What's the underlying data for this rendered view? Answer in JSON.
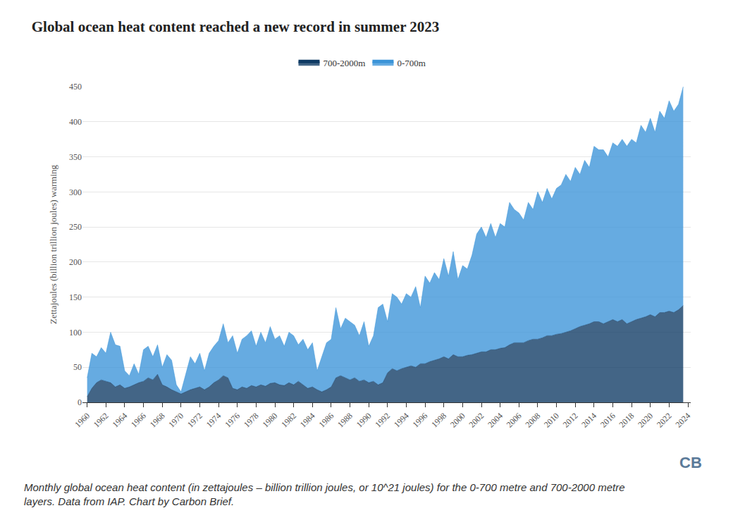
{
  "chart_data": {
    "type": "area",
    "title": "Global ocean heat content reached a new record in summer 2023",
    "y_label": "Zettajoules (billion trillion joules) warming",
    "caption": [
      "Monthly global ocean heat content (in zettajoules – billion trillion joules, or 10^21 joules) for the 0-700 metre and 700-2000 metre",
      "layers. Data from IAP. Chart by Carbon Brief."
    ],
    "logo": "CB",
    "stacked": true,
    "grid": true,
    "legend": "top",
    "x": [
      1960,
      1960.5,
      1961,
      1961.5,
      1962,
      1962.5,
      1963,
      1963.5,
      1964,
      1964.5,
      1965,
      1965.5,
      1966,
      1966.5,
      1967,
      1967.5,
      1968,
      1968.5,
      1969,
      1969.5,
      1970,
      1970.5,
      1971,
      1971.5,
      1972,
      1972.5,
      1973,
      1973.5,
      1974,
      1974.5,
      1975,
      1975.5,
      1976,
      1976.5,
      1977,
      1977.5,
      1978,
      1978.5,
      1979,
      1979.5,
      1980,
      1980.5,
      1981,
      1981.5,
      1982,
      1982.5,
      1983,
      1983.5,
      1984,
      1984.5,
      1985,
      1985.5,
      1986,
      1986.5,
      1987,
      1987.5,
      1988,
      1988.5,
      1989,
      1989.5,
      1990,
      1990.5,
      1991,
      1991.5,
      1992,
      1992.5,
      1993,
      1993.5,
      1994,
      1994.5,
      1995,
      1995.5,
      1996,
      1996.5,
      1997,
      1997.5,
      1998,
      1998.5,
      1999,
      1999.5,
      2000,
      2000.5,
      2001,
      2001.5,
      2002,
      2002.5,
      2003,
      2003.5,
      2004,
      2004.5,
      2005,
      2005.5,
      2006,
      2006.5,
      2007,
      2007.5,
      2008,
      2008.5,
      2009,
      2009.5,
      2010,
      2010.5,
      2011,
      2011.5,
      2012,
      2012.5,
      2013,
      2013.5,
      2014,
      2014.5,
      2015,
      2015.5,
      2016,
      2016.5,
      2017,
      2017.5,
      2018,
      2018.5,
      2019,
      2019.5,
      2020,
      2020.5,
      2021,
      2021.5,
      2022,
      2022.5,
      2023,
      2023.5
    ],
    "xlim": [
      1959.5,
      2024.3
    ],
    "xticks": [
      1960,
      1962,
      1964,
      1966,
      1968,
      1970,
      1972,
      1974,
      1976,
      1978,
      1980,
      1982,
      1984,
      1986,
      1988,
      1990,
      1992,
      1994,
      1996,
      1998,
      2000,
      2002,
      2004,
      2006,
      2008,
      2010,
      2012,
      2014,
      2016,
      2018,
      2020,
      2022,
      2024
    ],
    "ylim": [
      0,
      450
    ],
    "yticks": [
      0,
      50,
      100,
      150,
      200,
      250,
      300,
      350,
      400,
      450
    ],
    "series": [
      {
        "name": "0-700m",
        "color": "#3b94d8",
        "values": [
          27,
          50,
          37,
          46,
          40,
          72,
          60,
          55,
          25,
          16,
          30,
          12,
          45,
          45,
          33,
          42,
          25,
          46,
          42,
          10,
          3,
          25,
          47,
          35,
          48,
          27,
          48,
          52,
          56,
          74,
          50,
          75,
          52,
          68,
          75,
          78,
          58,
          75,
          62,
          81,
          62,
          70,
          56,
          72,
          70,
          52,
          65,
          55,
          63,
          27,
          50,
          67,
          68,
          100,
          67,
          85,
          83,
          75,
          65,
          83,
          52,
          65,
          110,
          112,
          73,
          107,
          105,
          92,
          105,
          98,
          115,
          80,
          125,
          112,
          125,
          113,
          140,
          118,
          147,
          110,
          130,
          123,
          142,
          170,
          178,
          163,
          180,
          160,
          178,
          172,
          203,
          190,
          185,
          175,
          197,
          185,
          210,
          193,
          210,
          195,
          208,
          212,
          225,
          213,
          230,
          217,
          235,
          223,
          250,
          245,
          248,
          235,
          252,
          250,
          257,
          253,
          260,
          252,
          275,
          263,
          280,
          263,
          287,
          277,
          300,
          287,
          293,
          312
        ]
      },
      {
        "name": "700-2000m",
        "color": "#0e3a64",
        "values": [
          8,
          20,
          28,
          32,
          30,
          28,
          22,
          25,
          20,
          22,
          25,
          28,
          30,
          35,
          32,
          40,
          25,
          22,
          18,
          15,
          12,
          15,
          18,
          20,
          22,
          18,
          22,
          28,
          32,
          38,
          35,
          20,
          18,
          22,
          20,
          24,
          22,
          25,
          23,
          27,
          28,
          25,
          24,
          28,
          25,
          30,
          25,
          20,
          22,
          18,
          15,
          18,
          22,
          35,
          38,
          35,
          32,
          35,
          30,
          32,
          28,
          30,
          25,
          28,
          42,
          48,
          45,
          48,
          50,
          52,
          50,
          55,
          55,
          58,
          60,
          62,
          65,
          62,
          68,
          65,
          65,
          67,
          68,
          70,
          72,
          72,
          75,
          75,
          77,
          78,
          82,
          85,
          85,
          85,
          88,
          90,
          90,
          92,
          95,
          95,
          97,
          98,
          100,
          102,
          105,
          108,
          110,
          112,
          115,
          115,
          112,
          115,
          118,
          115,
          118,
          112,
          115,
          118,
          120,
          122,
          125,
          122,
          128,
          128,
          130,
          128,
          132,
          138
        ]
      }
    ]
  }
}
